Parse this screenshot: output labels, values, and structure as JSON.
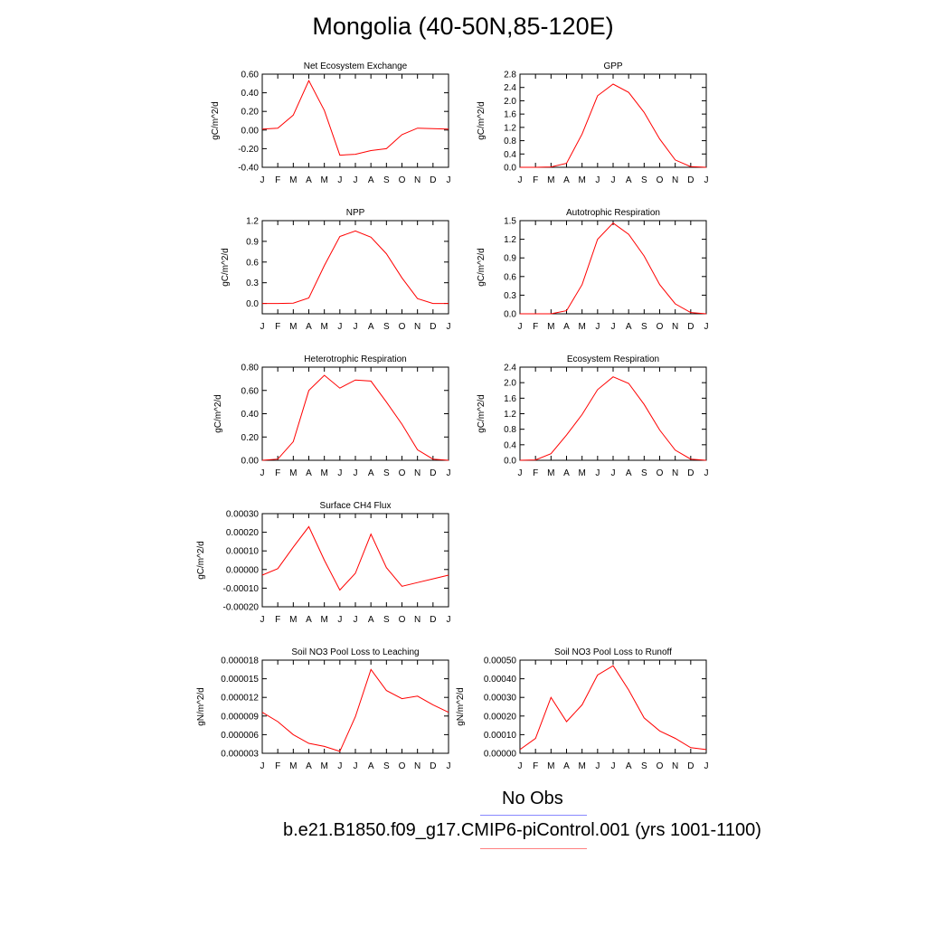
{
  "page_title": "Mongolia (40-50N,85-120E)",
  "legend": {
    "obs_label": "No Obs",
    "obs_color": "#8888ff",
    "model_label": "b.e21.B1850.f09_g17.CMIP6-piControl.001 (yrs 1001-1100)",
    "model_color": "#ff8080"
  },
  "line_color": "#ff0000",
  "chart_data": [
    {
      "type": "line",
      "title": "Net Ecosystem Exchange",
      "ylabel": "gC/m^2/d",
      "categories": [
        "J",
        "F",
        "M",
        "A",
        "M",
        "J",
        "J",
        "A",
        "S",
        "O",
        "N",
        "D",
        "J"
      ],
      "ylim": [
        -0.4,
        0.6
      ],
      "yticks": [
        "0.60",
        "0.40",
        "0.20",
        "0.00",
        "-0.20",
        "-0.40"
      ],
      "values": [
        0.01,
        0.02,
        0.16,
        0.53,
        0.21,
        -0.27,
        -0.26,
        -0.22,
        -0.2,
        -0.05,
        0.02,
        0.015,
        0.01
      ]
    },
    {
      "type": "line",
      "title": "GPP",
      "ylabel": "gC/m^2/d",
      "categories": [
        "J",
        "F",
        "M",
        "A",
        "M",
        "J",
        "J",
        "A",
        "S",
        "O",
        "N",
        "D",
        "J"
      ],
      "ylim": [
        0,
        2.8
      ],
      "yticks": [
        "2.8",
        "2.4",
        "2.0",
        "1.6",
        "1.2",
        "0.8",
        "0.4",
        "0.0"
      ],
      "values": [
        0.0,
        0.0,
        0.01,
        0.12,
        1.0,
        2.15,
        2.5,
        2.25,
        1.65,
        0.85,
        0.22,
        0.02,
        0.0
      ]
    },
    {
      "type": "line",
      "title": "NPP",
      "ylabel": "gC/m^2/d",
      "categories": [
        "J",
        "F",
        "M",
        "A",
        "M",
        "J",
        "J",
        "A",
        "S",
        "O",
        "N",
        "D",
        "J"
      ],
      "ylim": [
        -0.15,
        1.2
      ],
      "yticks": [
        "1.2",
        "0.9",
        "0.6",
        "0.3",
        "0.0"
      ],
      "values": [
        0.0,
        0.0,
        0.005,
        0.08,
        0.55,
        0.97,
        1.05,
        0.96,
        0.72,
        0.37,
        0.07,
        0.0,
        0.0
      ]
    },
    {
      "type": "line",
      "title": "Autotrophic Respiration",
      "ylabel": "gC/m^2/d",
      "categories": [
        "J",
        "F",
        "M",
        "A",
        "M",
        "J",
        "J",
        "A",
        "S",
        "O",
        "N",
        "D",
        "J"
      ],
      "ylim": [
        0,
        1.5
      ],
      "yticks": [
        "1.5",
        "1.2",
        "0.9",
        "0.6",
        "0.3",
        "0.0"
      ],
      "values": [
        0.0,
        0.0,
        0.0,
        0.05,
        0.47,
        1.2,
        1.46,
        1.28,
        0.93,
        0.47,
        0.16,
        0.02,
        0.0
      ]
    },
    {
      "type": "line",
      "title": "Heterotrophic Respiration",
      "ylabel": "gC/m^2/d",
      "categories": [
        "J",
        "F",
        "M",
        "A",
        "M",
        "J",
        "J",
        "A",
        "S",
        "O",
        "N",
        "D",
        "J"
      ],
      "ylim": [
        0,
        0.8
      ],
      "yticks": [
        "0.80",
        "0.60",
        "0.40",
        "0.20",
        "0.00"
      ],
      "values": [
        0.0,
        0.01,
        0.16,
        0.6,
        0.73,
        0.62,
        0.69,
        0.68,
        0.5,
        0.31,
        0.09,
        0.01,
        0.0
      ]
    },
    {
      "type": "line",
      "title": "Ecosystem Respiration",
      "ylabel": "gC/m^2/d",
      "categories": [
        "J",
        "F",
        "M",
        "A",
        "M",
        "J",
        "J",
        "A",
        "S",
        "O",
        "N",
        "D",
        "J"
      ],
      "ylim": [
        0,
        2.4
      ],
      "yticks": [
        "2.4",
        "2.0",
        "1.6",
        "1.2",
        "0.8",
        "0.4",
        "0.0"
      ],
      "values": [
        0.0,
        0.01,
        0.17,
        0.65,
        1.18,
        1.82,
        2.15,
        1.98,
        1.44,
        0.78,
        0.26,
        0.03,
        0.0
      ]
    },
    {
      "type": "line",
      "title": "Surface CH4 Flux",
      "ylabel": "gC/m^2/d",
      "categories": [
        "J",
        "F",
        "M",
        "A",
        "M",
        "J",
        "J",
        "A",
        "S",
        "O",
        "N",
        "D",
        "J"
      ],
      "ylim": [
        -0.0002,
        0.0003
      ],
      "yticks": [
        "0.00030",
        "0.00020",
        "0.00010",
        "0.00000",
        "-0.00010",
        "-0.00020"
      ],
      "values": [
        -3e-05,
        5e-06,
        0.00012,
        0.00023,
        5e-05,
        -0.00011,
        -2e-05,
        0.00019,
        1e-05,
        -9e-05,
        -7e-05,
        -5e-05,
        -3e-05
      ]
    },
    {
      "type": "line",
      "title": "Soil NO3 Pool Loss to Leaching",
      "ylabel": "gN/m^2/d",
      "categories": [
        "J",
        "F",
        "M",
        "A",
        "M",
        "J",
        "J",
        "A",
        "S",
        "O",
        "N",
        "D",
        "J"
      ],
      "ylim": [
        3e-06,
        1.8e-05
      ],
      "yticks": [
        "0.000018",
        "0.000015",
        "0.000012",
        "0.000009",
        "0.000006",
        "0.000003"
      ],
      "values": [
        9.6e-06,
        8.1e-06,
        6e-06,
        4.6e-06,
        4.1e-06,
        3.3e-06,
        8.9e-06,
        1.65e-05,
        1.31e-05,
        1.18e-05,
        1.22e-05,
        1.08e-05,
        9.6e-06
      ]
    },
    {
      "type": "line",
      "title": "Soil NO3 Pool Loss to Runoff",
      "ylabel": "gN/m^2/d",
      "categories": [
        "J",
        "F",
        "M",
        "A",
        "M",
        "J",
        "J",
        "A",
        "S",
        "O",
        "N",
        "D",
        "J"
      ],
      "ylim": [
        0,
        0.0005
      ],
      "yticks": [
        "0.00050",
        "0.00040",
        "0.00030",
        "0.00020",
        "0.00010",
        "0.00000"
      ],
      "values": [
        2e-05,
        8e-05,
        0.0003,
        0.00017,
        0.00026,
        0.00042,
        0.00047,
        0.00034,
        0.00019,
        0.00012,
        8e-05,
        3e-05,
        2e-05
      ]
    }
  ]
}
